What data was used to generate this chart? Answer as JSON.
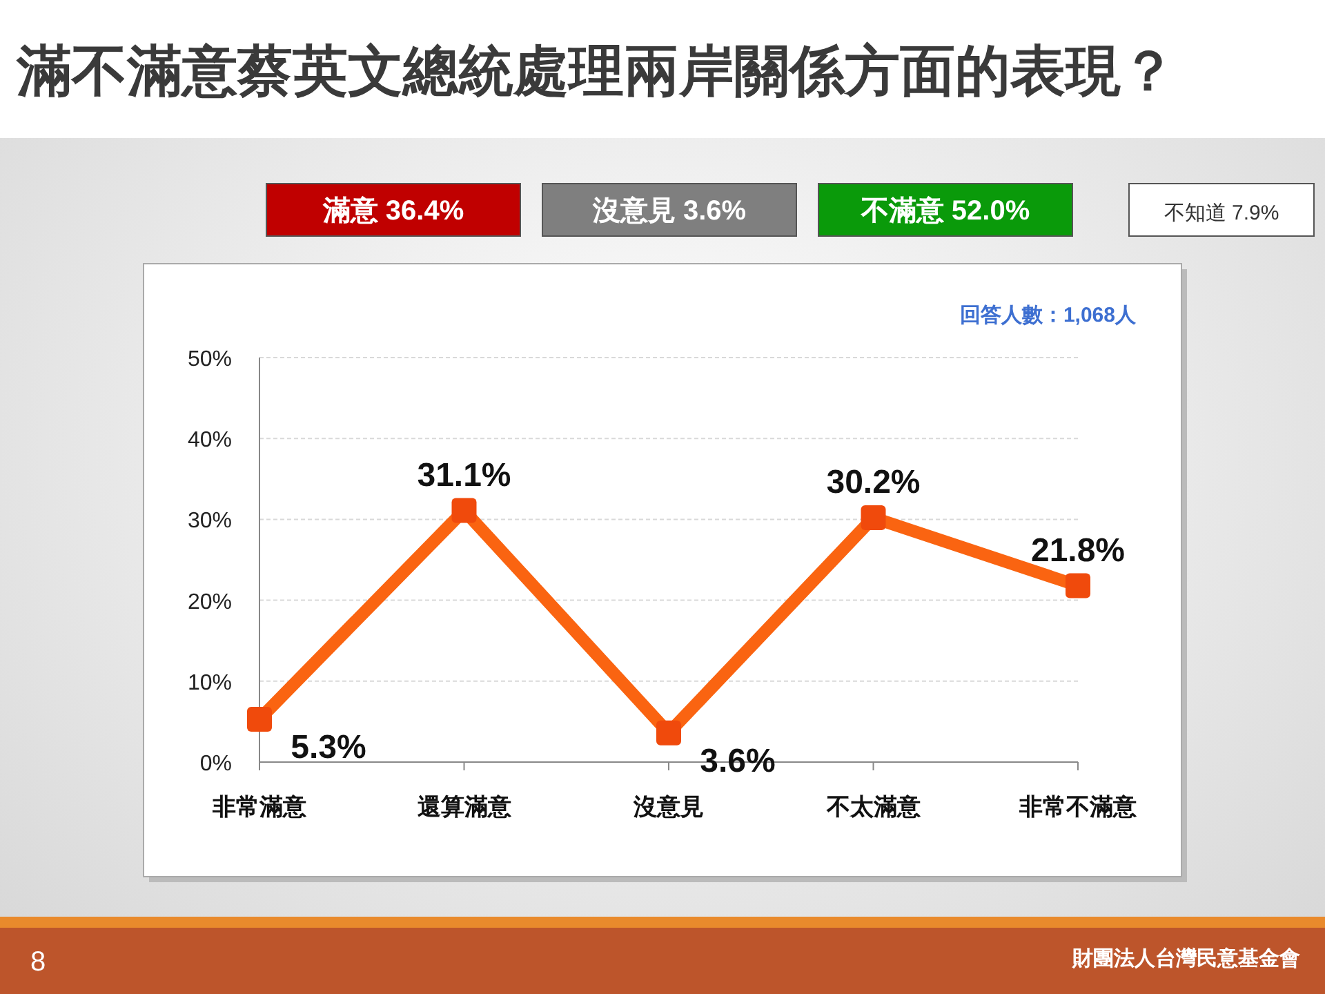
{
  "chart_data": {
    "type": "line",
    "title": "滿不滿意蔡英文總統處理兩岸關係方面的表現？",
    "categories": [
      "非常滿意",
      "還算滿意",
      "沒意見",
      "不太滿意",
      "非常不滿意"
    ],
    "values": [
      5.3,
      31.1,
      3.6,
      30.2,
      21.8
    ],
    "value_labels": [
      "5.3%",
      "31.1%",
      "3.6%",
      "30.2%",
      "21.8%"
    ],
    "color": "#fa6411",
    "marker": "square",
    "grid": "y",
    "ylim": [
      0,
      50
    ],
    "yticks": [
      {
        "value": 0,
        "label": "0%"
      },
      {
        "value": 10,
        "label": "10%"
      },
      {
        "value": 20,
        "label": "20%"
      },
      {
        "value": 30,
        "label": "30%"
      },
      {
        "value": 40,
        "label": "40%"
      },
      {
        "value": 50,
        "label": "50%"
      }
    ],
    "annotations": [
      "滿意 36.4%",
      "沒意見 3.6%",
      "不滿意 52.0%",
      "不知道 7.9%",
      "回答人數：1,068人",
      "8",
      "財團法人台灣民意基金會"
    ]
  }
}
